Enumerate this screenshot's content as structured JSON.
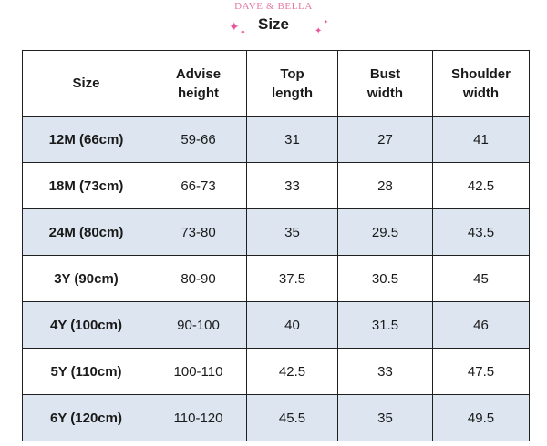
{
  "header": {
    "brand": "DAVE & BELLA",
    "title": "Size"
  },
  "table": {
    "columns": [
      "Size",
      "Advise height",
      "Top length",
      "Bust width",
      "Shoulder width"
    ],
    "column_lines": [
      [
        "Size"
      ],
      [
        "Advise",
        "height"
      ],
      [
        "Top",
        "length"
      ],
      [
        "Bust",
        "width"
      ],
      [
        "Shoulder",
        "width"
      ]
    ],
    "rows": [
      [
        "12M (66cm)",
        "59-66",
        "31",
        "27",
        "41"
      ],
      [
        "18M (73cm)",
        "66-73",
        "33",
        "28",
        "42.5"
      ],
      [
        "24M (80cm)",
        "73-80",
        "35",
        "29.5",
        "43.5"
      ],
      [
        "3Y (90cm)",
        "80-90",
        "37.5",
        "30.5",
        "45"
      ],
      [
        "4Y (100cm)",
        "90-100",
        "40",
        "31.5",
        "46"
      ],
      [
        "5Y (110cm)",
        "100-110",
        "42.5",
        "33",
        "47.5"
      ],
      [
        "6Y (120cm)",
        "110-120",
        "45.5",
        "35",
        "49.5"
      ]
    ]
  },
  "colors": {
    "shaded_row": "#dde6f0",
    "plain_row": "#ffffff",
    "border": "#1f1f1f",
    "brand_pink": "#e27aa4",
    "sparkle_pink": "#e8569a"
  },
  "icons": [
    "sparkle-icon"
  ]
}
